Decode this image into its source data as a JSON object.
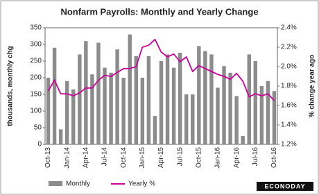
{
  "chart_data": {
    "type": "bar",
    "title": "Nonfarm Payrolls: Monthly and Yearly Change",
    "ylabel": "thousands, monthly chg",
    "y2label": "% change year ago",
    "categories": [
      "Oct-13",
      null,
      null,
      "Jan-14",
      null,
      null,
      "Apr-14",
      null,
      null,
      "Jul-14",
      null,
      null,
      "Oct-14",
      null,
      null,
      "Jan-15",
      null,
      null,
      "Apr-15",
      null,
      null,
      "Jul-15",
      null,
      null,
      "Oct-15",
      null,
      null,
      "Jan-16",
      null,
      null,
      "Apr-16",
      null,
      null,
      "Jul-16",
      null,
      null,
      "Oct-16"
    ],
    "series": [
      {
        "name": "Monthly",
        "type": "bar",
        "color": "#8c8c8c",
        "values": [
          200,
          290,
          45,
          190,
          165,
          270,
          310,
          210,
          305,
          230,
          215,
          285,
          200,
          330,
          265,
          200,
          265,
          85,
          250,
          270,
          230,
          275,
          150,
          150,
          295,
          280,
          270,
          170,
          235,
          215,
          145,
          25,
          270,
          250,
          175,
          190,
          160
        ]
      },
      {
        "name": "Yearly %",
        "type": "line",
        "axis": "y2",
        "color": "#cc0099",
        "values": [
          1.75,
          1.86,
          1.72,
          1.72,
          1.7,
          1.73,
          1.78,
          1.78,
          1.86,
          1.91,
          1.9,
          1.94,
          1.98,
          1.98,
          2.0,
          2.2,
          2.22,
          2.28,
          2.15,
          2.1,
          2.13,
          2.05,
          2.1,
          1.95,
          2.01,
          1.98,
          1.95,
          1.92,
          1.9,
          1.87,
          1.93,
          1.85,
          1.69,
          1.72,
          1.7,
          1.72,
          1.65
        ]
      }
    ],
    "ylim": [
      0,
      350
    ],
    "yticks": [
      0,
      50,
      100,
      150,
      200,
      250,
      300,
      350
    ],
    "y2lim": [
      1.2,
      2.4
    ],
    "y2ticks": [
      {
        "value": 1.2,
        "label": "1.2%"
      },
      {
        "value": 1.4,
        "label": "1.4%"
      },
      {
        "value": 1.6,
        "label": "1.6%"
      },
      {
        "value": 1.8,
        "label": "1.8%"
      },
      {
        "value": 2.0,
        "label": "2.0%"
      },
      {
        "value": 2.2,
        "label": "2.2%"
      },
      {
        "value": 2.4,
        "label": "2.4%"
      }
    ],
    "logo": "ECONODAY"
  }
}
